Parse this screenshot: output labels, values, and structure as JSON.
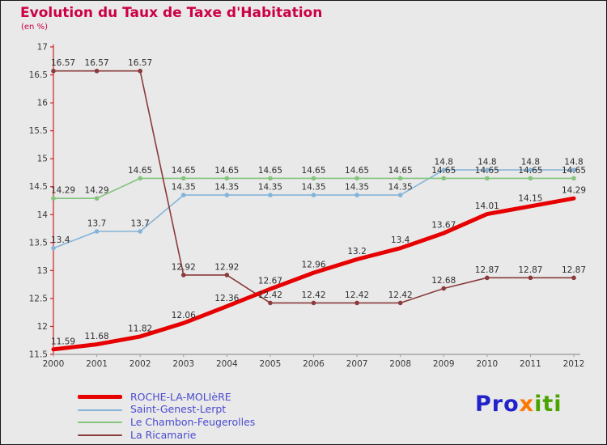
{
  "chart_data": {
    "type": "line",
    "title": "Evolution du Taux de Taxe d'Habitation",
    "subtitle": "(en %)",
    "title_color": "#cc0044",
    "x": [
      2000,
      2001,
      2002,
      2003,
      2004,
      2005,
      2006,
      2007,
      2008,
      2009,
      2010,
      2011,
      2012
    ],
    "ylim": [
      11.5,
      17
    ],
    "ytick_step": 0.5,
    "grid": false,
    "legend_position": "bottom-left",
    "legend_text_color": "#4a4ad0",
    "axis": {
      "y_axis_color": "#cc2222",
      "x_axis_color": "#999999",
      "tick_label_color": "#3a3a3a",
      "point_label_color": "#2e2e2e"
    },
    "series": [
      {
        "name": "ROCHE-LA-MOLIèRE",
        "color": "#e60000",
        "width": 5,
        "marker": false,
        "values": [
          11.59,
          11.68,
          11.82,
          12.06,
          12.36,
          12.67,
          12.96,
          13.2,
          13.4,
          13.67,
          14.01,
          14.15,
          14.29
        ]
      },
      {
        "name": "Saint-Genest-Lerpt",
        "color": "#85b4d8",
        "width": 1.6,
        "marker": true,
        "values": [
          13.4,
          13.7,
          13.7,
          14.35,
          14.35,
          14.35,
          14.35,
          14.35,
          14.35,
          14.8,
          14.8,
          14.8,
          14.8
        ]
      },
      {
        "name": "Le Chambon-Feugerolles",
        "color": "#84c47c",
        "width": 1.6,
        "marker": true,
        "values": [
          14.29,
          14.29,
          14.65,
          14.65,
          14.65,
          14.65,
          14.65,
          14.65,
          14.65,
          14.65,
          14.65,
          14.65,
          14.65
        ]
      },
      {
        "name": "La Ricamarie",
        "color": "#8a3b3b",
        "width": 1.6,
        "marker": true,
        "values": [
          16.57,
          16.57,
          16.57,
          12.92,
          12.92,
          12.42,
          12.42,
          12.42,
          12.42,
          12.68,
          12.87,
          12.87,
          12.87
        ]
      }
    ]
  },
  "logo": {
    "parts": [
      {
        "text": "Pro",
        "color": "#2222cc"
      },
      {
        "text": "x",
        "color": "#ff7700"
      },
      {
        "text": "iti",
        "color": "#4aa400"
      }
    ]
  }
}
